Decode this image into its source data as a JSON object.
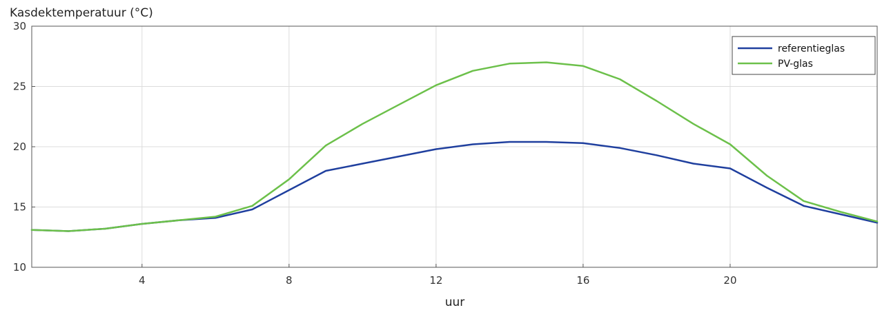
{
  "chart_data": {
    "type": "line",
    "title": "",
    "ylabel": "Kasdektemperatuur (°C)",
    "xlabel": "uur",
    "xlim": [
      1,
      24
    ],
    "ylim": [
      10,
      30
    ],
    "xticks": [
      4,
      8,
      12,
      16,
      20
    ],
    "yticks": [
      10,
      15,
      20,
      25,
      30
    ],
    "grid": true,
    "legend_position": "top-right",
    "x": [
      1,
      2,
      3,
      4,
      5,
      6,
      7,
      8,
      9,
      10,
      11,
      12,
      13,
      14,
      15,
      16,
      17,
      18,
      19,
      20,
      21,
      22,
      23,
      24
    ],
    "series": [
      {
        "name": "referentieglas",
        "color": "#1f3f9e",
        "values": [
          13.1,
          13.0,
          13.2,
          13.6,
          13.9,
          14.1,
          14.8,
          16.4,
          18.0,
          18.6,
          19.2,
          19.8,
          20.2,
          20.4,
          20.4,
          20.3,
          19.9,
          19.3,
          18.6,
          18.2,
          16.6,
          15.1,
          14.4,
          13.7
        ]
      },
      {
        "name": "PV-glas",
        "color": "#6cc04a",
        "values": [
          13.1,
          13.0,
          13.2,
          13.6,
          13.9,
          14.2,
          15.1,
          17.3,
          20.1,
          21.9,
          23.5,
          25.1,
          26.3,
          26.9,
          27.0,
          26.7,
          25.6,
          23.8,
          21.9,
          20.2,
          17.6,
          15.5,
          14.6,
          13.8
        ]
      }
    ]
  }
}
